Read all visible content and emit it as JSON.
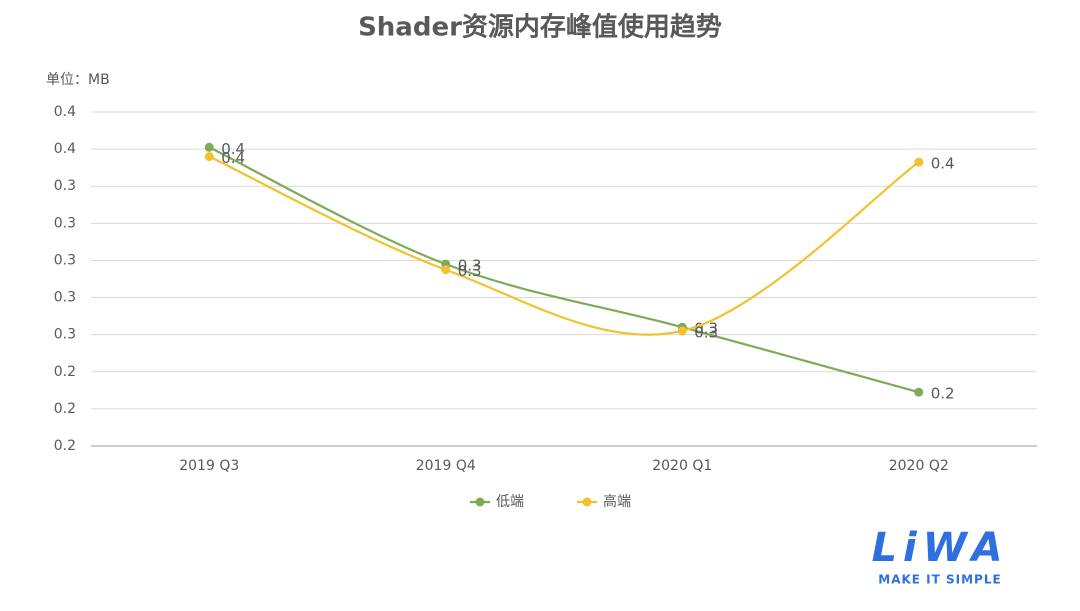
{
  "chart_data": {
    "type": "line",
    "title": "Shader资源内存峰值使用趋势",
    "unit_label": "单位：MB",
    "categories": [
      "2019 Q3",
      "2019 Q4",
      "2020 Q1",
      "2020 Q2"
    ],
    "series": [
      {
        "name": "低端",
        "color": "#7eab55",
        "values": [
          0.361,
          0.298,
          0.264,
          0.229
        ],
        "value_labels": [
          "0.4",
          "0.3",
          "0.3",
          "0.2"
        ]
      },
      {
        "name": "高端",
        "color": "#f2c12e",
        "values": [
          0.356,
          0.295,
          0.262,
          0.353
        ],
        "value_labels": [
          "0.4",
          "0.3",
          "0.3",
          "0.4"
        ]
      }
    ],
    "ylim": [
      0.2,
      0.38
    ],
    "yticks": [
      {
        "value": 0.2,
        "label": "0.2"
      },
      {
        "value": 0.22,
        "label": "0.2"
      },
      {
        "value": 0.24,
        "label": "0.2"
      },
      {
        "value": 0.26,
        "label": "0.3"
      },
      {
        "value": 0.28,
        "label": "0.3"
      },
      {
        "value": 0.3,
        "label": "0.3"
      },
      {
        "value": 0.32,
        "label": "0.3"
      },
      {
        "value": 0.34,
        "label": "0.3"
      },
      {
        "value": 0.36,
        "label": "0.4"
      },
      {
        "value": 0.38,
        "label": "0.4"
      }
    ],
    "grid": true,
    "smooth": true,
    "legend": "bottom"
  },
  "logo": {
    "text": "LiWA",
    "tagline": "MAKE IT SIMPLE"
  }
}
